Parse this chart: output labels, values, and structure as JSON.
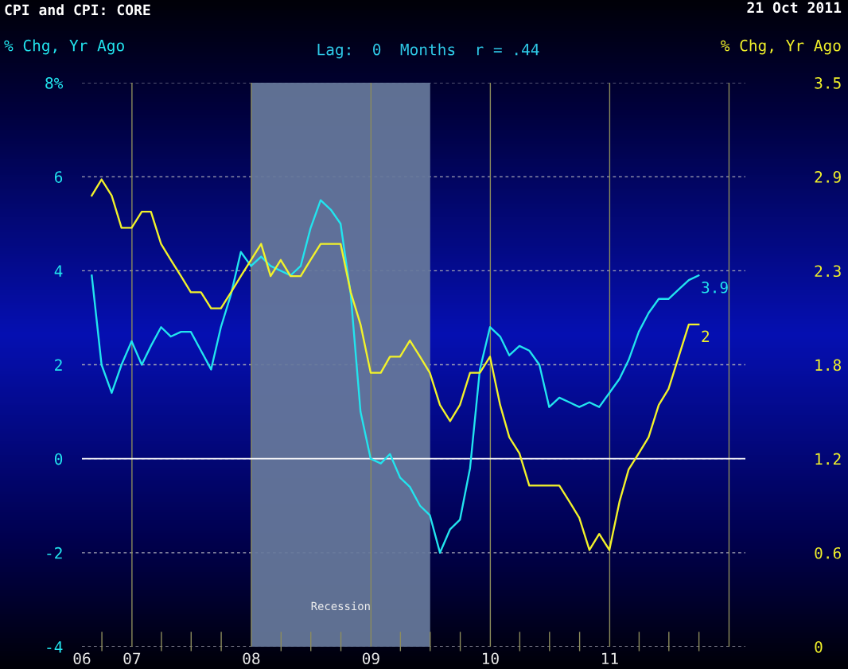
{
  "chart_data": {
    "type": "line",
    "title": "CPI and CPI: CORE",
    "subtitle": "Lag:  0  Months  r = .44",
    "ylabel": "% Chg, Yr Ago",
    "y2label": "% Chg, Yr Ago",
    "annotations": [
      "21 Oct 2011"
    ],
    "x": [
      "2006-08-31",
      "2006-09-30",
      "2006-10-31",
      "2006-11-30",
      "2006-12-31",
      "2007-01-31",
      "2007-02-28",
      "2007-03-31",
      "2007-04-30",
      "2007-05-31",
      "2007-06-30",
      "2007-07-31",
      "2007-08-31",
      "2007-09-30",
      "2007-10-31",
      "2007-11-30",
      "2007-12-31",
      "2008-01-31",
      "2008-02-29",
      "2008-03-31",
      "2008-04-30",
      "2008-05-31",
      "2008-06-30",
      "2008-07-31",
      "2008-08-31",
      "2008-09-30",
      "2008-10-31",
      "2008-11-30",
      "2008-12-31",
      "2009-01-31",
      "2009-02-28",
      "2009-03-31",
      "2009-04-30",
      "2009-05-31",
      "2009-06-30",
      "2009-07-31",
      "2009-08-31",
      "2009-09-30",
      "2009-10-31",
      "2009-11-30",
      "2009-12-31",
      "2010-01-31",
      "2010-02-28",
      "2010-03-31",
      "2010-04-30",
      "2010-05-31",
      "2010-06-30",
      "2010-07-31",
      "2010-08-31",
      "2010-09-30",
      "2010-10-31",
      "2010-11-30",
      "2010-12-31",
      "2011-01-31",
      "2011-02-28",
      "2011-03-31",
      "2011-04-30",
      "2011-05-31",
      "2011-06-30",
      "2011-07-31",
      "2011-08-31",
      "2011-09-30"
    ],
    "series": [
      {
        "color": "#22e4ee",
        "values": [
          3.9,
          2.0,
          1.4,
          2.0,
          2.5,
          2.0,
          2.4,
          2.8,
          2.6,
          2.7,
          2.7,
          2.3,
          1.9,
          2.8,
          3.5,
          4.4,
          4.1,
          4.3,
          4.1,
          4.0,
          3.9,
          4.1,
          4.9,
          5.5,
          5.3,
          5.0,
          3.5,
          1.0,
          0.0,
          -0.1,
          0.1,
          -0.4,
          -0.6,
          -1.0,
          -1.2,
          -2.0,
          -1.5,
          -1.3,
          -0.2,
          1.9,
          2.8,
          2.6,
          2.2,
          2.4,
          2.3,
          2.0,
          1.1,
          1.3,
          1.2,
          1.1,
          1.2,
          1.1,
          1.4,
          1.7,
          2.1,
          2.7,
          3.1,
          3.4,
          3.4,
          3.6,
          3.8,
          3.9
        ],
        "value_labels": [
          null,
          null,
          null,
          null,
          null,
          null,
          null,
          null,
          null,
          null,
          null,
          null,
          null,
          null,
          null,
          null,
          null,
          null,
          null,
          null,
          null,
          null,
          null,
          null,
          null,
          null,
          null,
          null,
          null,
          null,
          null,
          null,
          null,
          null,
          null,
          null,
          null,
          null,
          null,
          null,
          null,
          null,
          null,
          null,
          null,
          null,
          null,
          null,
          null,
          null,
          null,
          null,
          null,
          null,
          null,
          null,
          null,
          null,
          null,
          null,
          null,
          "3.9"
        ]
      },
      {
        "color": "#f2f22a",
        "axis": "y2",
        "values": [
          2.8,
          2.9,
          2.8,
          2.6,
          2.6,
          2.7,
          2.7,
          2.5,
          2.4,
          2.3,
          2.2,
          2.2,
          2.1,
          2.1,
          2.2,
          2.3,
          2.4,
          2.5,
          2.3,
          2.4,
          2.3,
          2.3,
          2.4,
          2.5,
          2.5,
          2.5,
          2.2,
          2.0,
          1.7,
          1.7,
          1.8,
          1.8,
          1.9,
          1.8,
          1.7,
          1.5,
          1.4,
          1.5,
          1.7,
          1.7,
          1.8,
          1.5,
          1.3,
          1.2,
          1.0,
          1.0,
          1.0,
          1.0,
          0.9,
          0.8,
          0.6,
          0.7,
          0.6,
          0.9,
          1.1,
          1.2,
          1.3,
          1.5,
          1.6,
          1.8,
          2.0,
          2.0
        ],
        "value_labels": [
          null,
          null,
          null,
          null,
          null,
          null,
          null,
          null,
          null,
          null,
          null,
          null,
          null,
          null,
          null,
          null,
          null,
          null,
          null,
          null,
          null,
          null,
          null,
          null,
          null,
          null,
          null,
          null,
          null,
          null,
          null,
          null,
          null,
          null,
          null,
          null,
          null,
          null,
          null,
          null,
          null,
          null,
          null,
          null,
          null,
          null,
          null,
          null,
          null,
          null,
          null,
          null,
          null,
          null,
          null,
          null,
          null,
          null,
          null,
          null,
          null,
          "2"
        ]
      }
    ],
    "xlim": [
      "2006-08-01",
      "2012-02-20"
    ],
    "xticks": [
      {
        "value": "2006-08-01",
        "label": "06"
      },
      {
        "value": "2006-10-01",
        "label": null
      },
      {
        "value": "2007-01-01",
        "label": "07"
      },
      {
        "value": "2007-04-01",
        "label": null
      },
      {
        "value": "2007-07-01",
        "label": null
      },
      {
        "value": "2007-10-01",
        "label": null
      },
      {
        "value": "2008-01-01",
        "label": "08"
      },
      {
        "value": "2008-04-01",
        "label": null
      },
      {
        "value": "2008-07-01",
        "label": null
      },
      {
        "value": "2008-10-01",
        "label": null
      },
      {
        "value": "2009-01-01",
        "label": "09"
      },
      {
        "value": "2009-04-01",
        "label": null
      },
      {
        "value": "2009-07-01",
        "label": null
      },
      {
        "value": "2009-10-01",
        "label": null
      },
      {
        "value": "2010-01-01",
        "label": "10"
      },
      {
        "value": "2010-04-01",
        "label": null
      },
      {
        "value": "2010-07-01",
        "label": null
      },
      {
        "value": "2010-10-01",
        "label": null
      },
      {
        "value": "2011-01-01",
        "label": "11"
      },
      {
        "value": "2011-04-01",
        "label": null
      },
      {
        "value": "2011-07-01",
        "label": null
      },
      {
        "value": "2011-10-01",
        "label": null
      },
      {
        "value": "2012-01-01",
        "label": null
      }
    ],
    "ylim": [
      -4,
      8
    ],
    "yticks": [
      -4,
      -2,
      0,
      2,
      4,
      6,
      {
        "value": 8,
        "label": "8%"
      }
    ],
    "y2lim": [
      0,
      3.5
    ],
    "y2ticks": [
      0,
      {
        "value": 0.583,
        "label": "0.6"
      },
      {
        "value": 1.167,
        "label": "1.2"
      },
      {
        "value": 1.75,
        "label": "1.8"
      },
      {
        "value": 2.333,
        "label": "2.3"
      },
      {
        "value": 2.917,
        "label": "2.9"
      },
      3.5
    ],
    "ref_lines": [
      {
        "axis": "y",
        "value": 0,
        "color": "#ffffff"
      }
    ],
    "bands": [
      {
        "axis": "x",
        "from": "2008-01-01",
        "to": "2009-07-01",
        "label": "Recession",
        "color": "#66799b"
      }
    ],
    "grid": true,
    "line_style": "solid"
  }
}
